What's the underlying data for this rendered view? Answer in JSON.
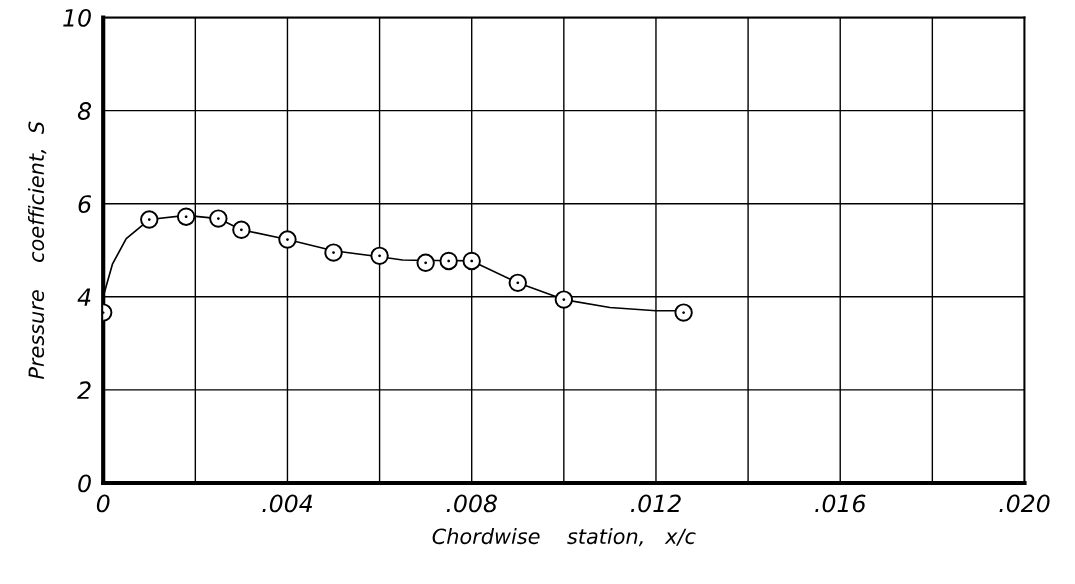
{
  "chart_data": {
    "type": "scatter",
    "xlabel": "Chordwise    station,   x/c",
    "ylabel": "Pressure    coefficient,  S",
    "xlim": [
      0,
      0.02
    ],
    "ylim": [
      0,
      10
    ],
    "xticks": [
      {
        "value": 0,
        "label": "0"
      },
      {
        "value": 0.004,
        "label": ".004"
      },
      {
        "value": 0.008,
        "label": ".008"
      },
      {
        "value": 0.012,
        "label": ".012"
      },
      {
        "value": 0.016,
        "label": ".016"
      },
      {
        "value": 0.02,
        "label": ".020"
      }
    ],
    "yticks": [
      {
        "value": 0,
        "label": "0"
      },
      2,
      4,
      6,
      8,
      10
    ],
    "grid": true,
    "marker": "circle",
    "series": [
      {
        "type": "line",
        "color": "#000000",
        "marker": "none",
        "line_style": "solid",
        "x": [
          0,
          0.0002,
          0.0005,
          0.001,
          0.0018,
          0.0025,
          0.003,
          0.004,
          0.005,
          0.006,
          0.0065,
          0.007,
          0.0075,
          0.008,
          0.009,
          0.01,
          0.011,
          0.012,
          0.0125
        ],
        "values": [
          4.0,
          4.7,
          5.25,
          5.66,
          5.75,
          5.68,
          5.44,
          5.23,
          4.99,
          4.86,
          4.79,
          4.78,
          4.78,
          4.77,
          4.3,
          3.94,
          3.77,
          3.7,
          3.7
        ]
      },
      {
        "color": "#000000",
        "x": [
          0,
          0.001,
          0.0018,
          0.0025,
          0.003,
          0.004,
          0.005,
          0.006,
          0.007,
          0.0075,
          0.008,
          0.009,
          0.01,
          0.0126
        ],
        "values": [
          3.66,
          5.66,
          5.72,
          5.68,
          5.44,
          5.23,
          4.95,
          4.88,
          4.73,
          4.77,
          4.77,
          4.3,
          3.94,
          3.66
        ]
      }
    ]
  }
}
